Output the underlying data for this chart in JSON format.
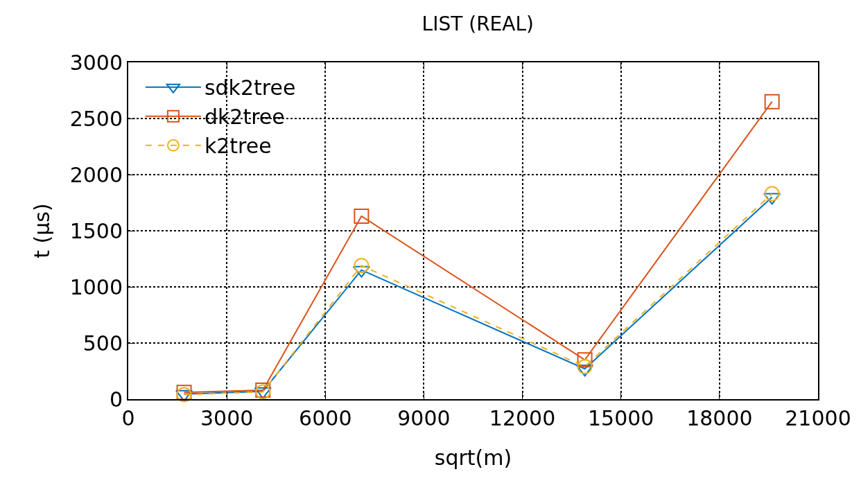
{
  "chart_data": {
    "type": "line",
    "title": "LIST (REAL)",
    "xlabel": "sqrt(m)",
    "ylabel": "t (µs)",
    "x": [
      1700,
      4100,
      7100,
      13900,
      19600
    ],
    "series": [
      {
        "name": "sdk2tree",
        "color": "#0072bd",
        "marker": "triangle",
        "line_style": "solid",
        "values": [
          45,
          70,
          1150,
          270,
          1800
        ]
      },
      {
        "name": "dk2tree",
        "color": "#d95319",
        "marker": "square",
        "line_style": "solid",
        "values": [
          60,
          80,
          1630,
          350,
          2650
        ]
      },
      {
        "name": "k2tree",
        "color": "#edb120",
        "marker": "circle",
        "line_style": "dashed",
        "values": [
          40,
          65,
          1190,
          290,
          1830
        ]
      }
    ],
    "xlim": [
      0,
      21000
    ],
    "xticks": [
      0,
      3000,
      6000,
      9000,
      12000,
      15000,
      18000,
      21000
    ],
    "ylim": [
      0,
      3000
    ],
    "yticks": [
      0,
      500,
      1000,
      1500,
      2000,
      2500,
      3000
    ],
    "grid": true,
    "legend": "top left"
  }
}
